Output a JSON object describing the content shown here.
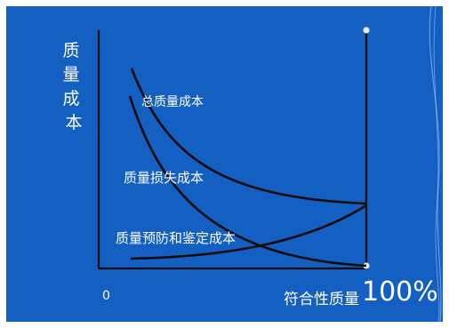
{
  "colors": {
    "background": "#1360c2",
    "axis": "#0b0b0b",
    "curve": "#0b0b0b",
    "text": "#ffffff"
  },
  "y_axis_label": "质量成本",
  "x_axis_label": "符合性质量",
  "x_origin_label": "0",
  "x_end_label": "100%",
  "curve_labels": {
    "total": "总质量成本",
    "loss": "质量损失成本",
    "prevention": "质量预防和鉴定成本"
  }
}
